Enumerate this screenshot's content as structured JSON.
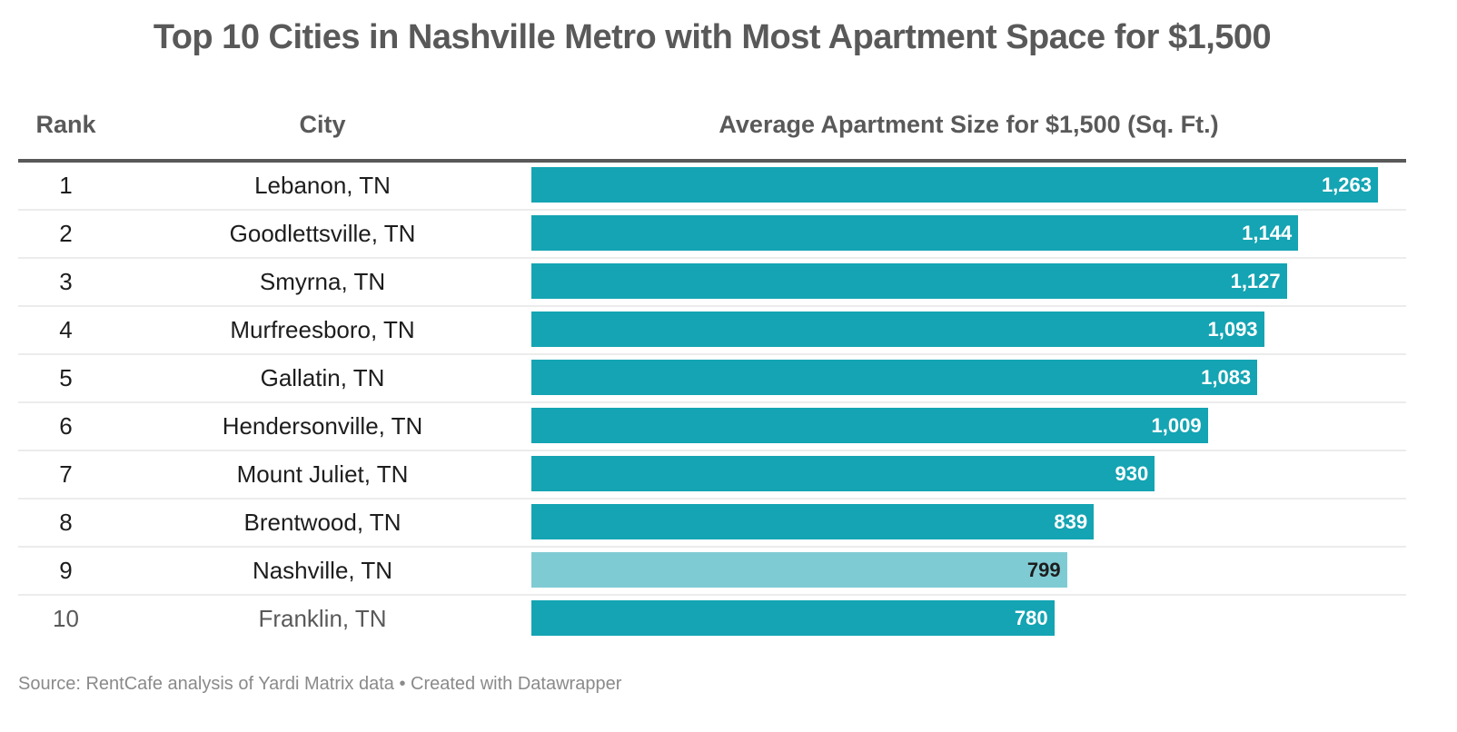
{
  "chart_data": {
    "type": "table",
    "title": "Top 10 Cities in Nashville Metro with Most Apartment Space for $1,500",
    "columns": [
      "Rank",
      "City",
      "Average Apartment Size for $1,500 (Sq. Ft.)"
    ],
    "xlim": [
      0,
      1305
    ],
    "rows": [
      {
        "rank": "1",
        "city": "Lebanon, TN",
        "value": 1263,
        "label": "1,263",
        "highlight": false
      },
      {
        "rank": "2",
        "city": "Goodlettsville, TN",
        "value": 1144,
        "label": "1,144",
        "highlight": false
      },
      {
        "rank": "3",
        "city": "Smyrna, TN",
        "value": 1127,
        "label": "1,127",
        "highlight": false
      },
      {
        "rank": "4",
        "city": "Murfreesboro, TN",
        "value": 1093,
        "label": "1,093",
        "highlight": false
      },
      {
        "rank": "5",
        "city": "Gallatin, TN",
        "value": 1083,
        "label": "1,083",
        "highlight": false
      },
      {
        "rank": "6",
        "city": "Hendersonville, TN",
        "value": 1009,
        "label": "1,009",
        "highlight": false
      },
      {
        "rank": "7",
        "city": "Mount Juliet, TN",
        "value": 930,
        "label": "930",
        "highlight": false
      },
      {
        "rank": "8",
        "city": "Brentwood, TN",
        "value": 839,
        "label": "839",
        "highlight": false
      },
      {
        "rank": "9",
        "city": "Nashville, TN",
        "value": 799,
        "label": "799",
        "highlight": true
      },
      {
        "rank": "10",
        "city": "Franklin, TN",
        "value": 780,
        "label": "780",
        "highlight": false
      }
    ],
    "colors": {
      "bar": "#14a4b3",
      "highlight_bar": "#7fcbd4"
    }
  },
  "footer": "Source: RentCafe analysis of Yardi Matrix data • Created with Datawrapper"
}
